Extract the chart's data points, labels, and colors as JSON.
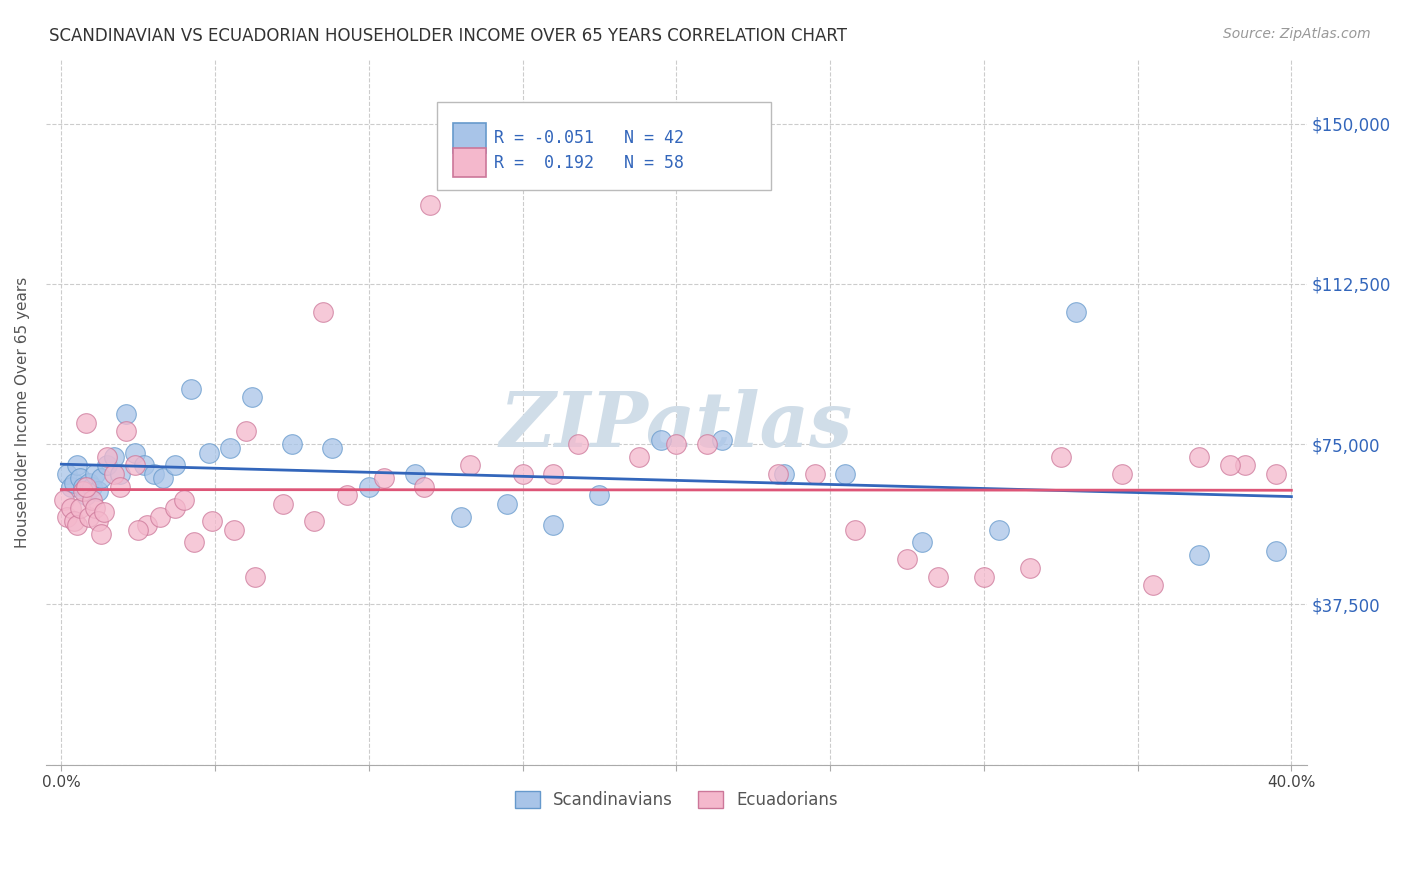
{
  "title": "SCANDINAVIAN VS ECUADORIAN HOUSEHOLDER INCOME OVER 65 YEARS CORRELATION CHART",
  "source": "Source: ZipAtlas.com",
  "ylabel": "Householder Income Over 65 years",
  "xlim": [
    -0.005,
    0.405
  ],
  "ylim": [
    0,
    165000
  ],
  "yticks": [
    0,
    37500,
    75000,
    112500,
    150000
  ],
  "ytick_labels_right": [
    "",
    "$37,500",
    "$75,000",
    "$112,500",
    "$150,000"
  ],
  "xticks": [
    0.0,
    0.05,
    0.1,
    0.15,
    0.2,
    0.25,
    0.3,
    0.35,
    0.4
  ],
  "xtick_labels": [
    "0.0%",
    "",
    "",
    "",
    "",
    "",
    "",
    "",
    "40.0%"
  ],
  "scand_color": "#a8c4e8",
  "scand_edge": "#6699cc",
  "ecua_color": "#f4b8cc",
  "ecua_edge": "#cc7799",
  "trend_blue": "#3366bb",
  "trend_pink": "#dd5577",
  "watermark": "ZIPatlas",
  "watermark_color": "#d0dde8",
  "legend_R_scand": "-0.051",
  "legend_N_scand": "42",
  "legend_R_ecua": "0.192",
  "legend_N_ecua": "58",
  "scand_x": [
    0.002,
    0.003,
    0.004,
    0.005,
    0.006,
    0.007,
    0.008,
    0.009,
    0.01,
    0.011,
    0.012,
    0.013,
    0.015,
    0.017,
    0.019,
    0.021,
    0.024,
    0.027,
    0.03,
    0.033,
    0.037,
    0.042,
    0.048,
    0.055,
    0.062,
    0.075,
    0.088,
    0.1,
    0.115,
    0.13,
    0.145,
    0.16,
    0.175,
    0.195,
    0.215,
    0.235,
    0.255,
    0.28,
    0.305,
    0.33,
    0.37,
    0.395
  ],
  "scand_y": [
    68000,
    65000,
    66000,
    70000,
    67000,
    65000,
    63000,
    66000,
    65000,
    68000,
    64000,
    67000,
    70000,
    72000,
    68000,
    82000,
    73000,
    70000,
    68000,
    67000,
    70000,
    88000,
    73000,
    74000,
    86000,
    75000,
    74000,
    65000,
    68000,
    58000,
    61000,
    56000,
    63000,
    76000,
    76000,
    68000,
    68000,
    52000,
    55000,
    106000,
    49000,
    50000
  ],
  "ecua_x": [
    0.001,
    0.002,
    0.003,
    0.004,
    0.005,
    0.006,
    0.007,
    0.008,
    0.009,
    0.01,
    0.011,
    0.012,
    0.013,
    0.014,
    0.015,
    0.017,
    0.019,
    0.021,
    0.024,
    0.028,
    0.032,
    0.037,
    0.043,
    0.049,
    0.056,
    0.063,
    0.072,
    0.082,
    0.093,
    0.105,
    0.118,
    0.133,
    0.15,
    0.168,
    0.188,
    0.21,
    0.233,
    0.258,
    0.285,
    0.315,
    0.345,
    0.37,
    0.385,
    0.395,
    0.008,
    0.025,
    0.04,
    0.06,
    0.085,
    0.12,
    0.16,
    0.2,
    0.245,
    0.275,
    0.3,
    0.325,
    0.355,
    0.38
  ],
  "ecua_y": [
    62000,
    58000,
    60000,
    57000,
    56000,
    60000,
    64000,
    80000,
    58000,
    62000,
    60000,
    57000,
    54000,
    59000,
    72000,
    68000,
    65000,
    78000,
    70000,
    56000,
    58000,
    60000,
    52000,
    57000,
    55000,
    44000,
    61000,
    57000,
    63000,
    67000,
    65000,
    70000,
    68000,
    75000,
    72000,
    75000,
    68000,
    55000,
    44000,
    46000,
    68000,
    72000,
    70000,
    68000,
    65000,
    55000,
    62000,
    78000,
    106000,
    131000,
    68000,
    75000,
    68000,
    48000,
    44000,
    72000,
    42000,
    70000
  ]
}
